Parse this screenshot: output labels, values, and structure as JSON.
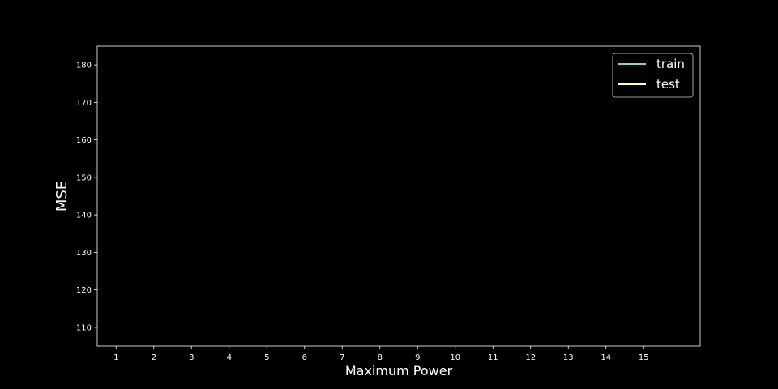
{
  "chart_data": {
    "type": "line",
    "title": "",
    "xlabel": "Maximum Power",
    "ylabel": "MSE",
    "x_ticks": [
      1,
      2,
      3,
      4,
      5,
      6,
      7,
      8,
      9,
      10,
      11,
      12,
      13,
      14,
      15
    ],
    "y_ticks": [
      110,
      120,
      130,
      140,
      150,
      160,
      170,
      180
    ],
    "xlim": [
      0.5,
      16.5
    ],
    "ylim": [
      105,
      185
    ],
    "grid": false,
    "legend_position": "top-right",
    "series": [
      {
        "name": "train",
        "color": "#8dd3c7",
        "x": [],
        "y": []
      },
      {
        "name": "test",
        "color": "#feffb3",
        "x": [],
        "y": []
      }
    ],
    "background": "#000000",
    "foreground": "#ffffff"
  }
}
